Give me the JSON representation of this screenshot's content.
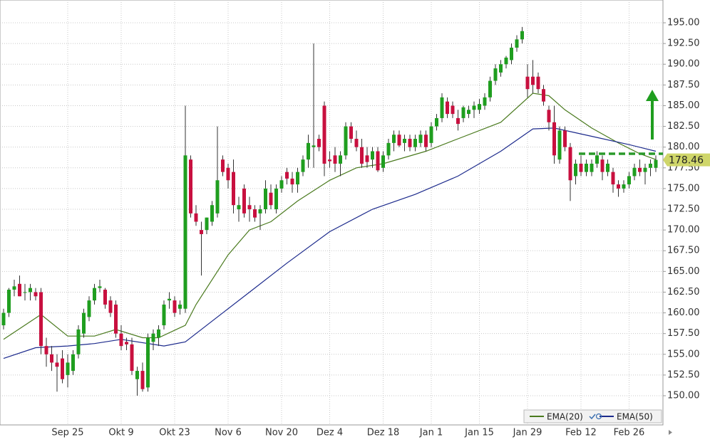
{
  "chart_data": {
    "type": "candlestick",
    "categories": [
      null,
      null,
      null,
      null,
      null,
      null,
      null,
      null,
      null,
      null,
      null,
      null,
      "Sep 25",
      null,
      null,
      null,
      null,
      null,
      null,
      null,
      null,
      null,
      "Okt 9",
      null,
      null,
      null,
      null,
      null,
      null,
      null,
      null,
      null,
      "Okt 23",
      null,
      null,
      null,
      null,
      null,
      null,
      null,
      null,
      null,
      "Nov 6",
      null,
      null,
      null,
      null,
      null,
      null,
      null,
      null,
      null,
      "Nov 20",
      null,
      null,
      null,
      null,
      null,
      null,
      null,
      null,
      "Dez 4",
      null,
      null,
      null,
      null,
      null,
      null,
      null,
      null,
      null,
      "Dez 18",
      null,
      null,
      null,
      null,
      null,
      null,
      null,
      null,
      "Jan 1",
      null,
      null,
      null,
      null,
      null,
      null,
      null,
      null,
      "Jan 15",
      null,
      null,
      null,
      null,
      null,
      null,
      null,
      null,
      "Jan 29",
      null,
      null,
      null,
      null,
      null,
      null,
      null,
      null,
      null,
      "Feb 12",
      null,
      null,
      null,
      null,
      null,
      null,
      null,
      null,
      "Feb 26",
      null,
      null,
      null,
      null,
      null
    ],
    "open": [
      158.5,
      160,
      162.8,
      163.5,
      162.5,
      162.5,
      162.5,
      162.5,
      156,
      155,
      154,
      154.5,
      152.5,
      153,
      155,
      157.5,
      159.5,
      161.5,
      163,
      162.8,
      161.5,
      161,
      157.5,
      156.5,
      156.2,
      152,
      153,
      151,
      156.5,
      157,
      158.5,
      161.5,
      161.5,
      160.5,
      160.5,
      178.5,
      172,
      170,
      170,
      171,
      172,
      178.5,
      177.5,
      177,
      172.5,
      175,
      173,
      172.5,
      172,
      172.5,
      174.5,
      172.5,
      175,
      177,
      176.2,
      175.5,
      177,
      178.5,
      180,
      181,
      185,
      178.5,
      179,
      178,
      179,
      182.5,
      181,
      180,
      179,
      178.5,
      179.5,
      177.5,
      179,
      180.5,
      181.5,
      180.5,
      181,
      180,
      180.5,
      181.5,
      180.5,
      182.5,
      183.5,
      185.5,
      185,
      183.5,
      183.5,
      184,
      184.5,
      184.5,
      185,
      186,
      188,
      189,
      190,
      190.5,
      192,
      193,
      188.5,
      188.5,
      188.5,
      187,
      184.5,
      183,
      178.5,
      182,
      180,
      176.5,
      178,
      177,
      177,
      178,
      178.5,
      177,
      177,
      175.5,
      175,
      175.5,
      176.5,
      177.5,
      177,
      177.5,
      177.5
    ],
    "high": [
      160.5,
      163,
      164,
      164.5,
      163.5,
      163.5,
      163,
      163,
      157,
      156,
      155,
      155.5,
      155,
      155.5,
      158.5,
      160.5,
      162,
      163.5,
      164,
      163,
      162,
      161.5,
      158.5,
      157,
      157,
      153.5,
      154,
      157.5,
      158,
      158.5,
      161.5,
      162.5,
      162,
      161.5,
      185,
      179,
      173,
      171,
      171.5,
      173.5,
      182.5,
      179,
      178,
      178.5,
      174,
      175.5,
      174,
      173,
      173,
      176,
      175.5,
      175.5,
      176.5,
      177.5,
      177,
      177.5,
      179,
      181.5,
      192.5,
      181.5,
      185.5,
      179.5,
      180,
      179.5,
      183,
      183,
      182,
      181,
      180,
      180,
      180,
      179.5,
      181,
      182,
      182,
      181.5,
      181.5,
      181.5,
      182,
      182,
      183,
      184,
      186.5,
      186,
      185.5,
      184.5,
      185,
      185,
      185.5,
      185.8,
      186.5,
      188.5,
      190,
      190.5,
      191,
      192.5,
      193.5,
      194.5,
      190,
      190.5,
      189,
      187.5,
      185,
      185,
      182.5,
      182.5,
      180.5,
      178.5,
      179,
      178.5,
      178.5,
      179.5,
      179,
      178.5,
      177.5,
      176,
      176,
      177,
      178,
      178.5,
      178,
      178.5,
      179
    ],
    "low": [
      158,
      159.5,
      162,
      162,
      161.5,
      161.5,
      161.5,
      155,
      153.5,
      153,
      150.5,
      151.5,
      151,
      152.5,
      154.5,
      157,
      159,
      161,
      162.5,
      160.5,
      159.5,
      157,
      155.5,
      155.5,
      152.5,
      150,
      150.5,
      150.5,
      155.5,
      156,
      158,
      160.5,
      159.5,
      159.8,
      160,
      171.5,
      170.5,
      164.5,
      169.5,
      170.5,
      171.5,
      176.5,
      175,
      172,
      171,
      171.5,
      171,
      171,
      170,
      172,
      172.5,
      172,
      174.5,
      175.5,
      174.5,
      174.5,
      176.5,
      177.5,
      177.5,
      179.5,
      176.5,
      177.5,
      177,
      176.5,
      178.5,
      180.5,
      179.5,
      177.5,
      177.5,
      177.5,
      177,
      177,
      178.5,
      179.5,
      180,
      179.5,
      179.5,
      179.5,
      180,
      179.5,
      180,
      182,
      183,
      183.5,
      183.5,
      182,
      183,
      183.5,
      183.5,
      184,
      184.5,
      185.5,
      187.5,
      188.5,
      189.5,
      190,
      191.5,
      192.5,
      186,
      186.5,
      186.5,
      185,
      182,
      178,
      178,
      179.5,
      173.5,
      175.5,
      176.5,
      176.5,
      176.5,
      177.5,
      176,
      176.5,
      174.5,
      174,
      174.5,
      175,
      176,
      176.5,
      175.5,
      176.5,
      177
    ],
    "close": [
      160,
      162.8,
      163.2,
      162,
      162.5,
      163,
      162,
      156,
      155,
      154,
      153.5,
      152,
      154,
      155,
      158,
      160,
      161.5,
      163,
      163.2,
      161,
      160,
      157.5,
      156,
      156.2,
      153,
      153,
      150.8,
      157,
      157.5,
      158,
      161,
      161.7,
      160,
      161,
      179,
      172,
      171,
      169.5,
      171.5,
      173,
      176,
      177,
      176,
      173,
      173,
      172,
      172.5,
      171.5,
      172.5,
      175,
      173,
      175,
      176,
      176.2,
      175.5,
      177,
      178.5,
      180.5,
      180.2,
      180,
      178,
      178.3,
      178,
      179,
      182.5,
      181,
      180,
      178,
      178.2,
      179.5,
      177.2,
      179,
      180.5,
      181.5,
      180.2,
      181,
      180,
      181,
      181.5,
      180,
      182.5,
      183.5,
      186,
      184,
      184,
      182.8,
      184.8,
      184.5,
      185,
      185.2,
      186,
      188,
      189.5,
      190,
      190.8,
      192,
      193,
      194,
      187,
      187.5,
      187,
      185.5,
      183,
      179,
      182,
      180,
      176,
      178,
      177,
      178,
      178,
      179,
      177,
      178,
      175.5,
      175,
      175.5,
      176.5,
      177.5,
      177,
      177.5,
      178,
      178.46
    ],
    "up_color": "#1f9e1f",
    "down_color": "#c8103f",
    "series": [
      {
        "name": "EMA(20)",
        "color": "#4a7a1e",
        "x": [
          0,
          7,
          12,
          17,
          21,
          26,
          29,
          34,
          36,
          42,
          46,
          50,
          55,
          61,
          66,
          71,
          79,
          85,
          93,
          99,
          102,
          105,
          110,
          115,
          119,
          122
        ],
        "values": [
          156.8,
          159.8,
          157.2,
          157.2,
          158,
          157,
          157,
          158.5,
          161,
          167,
          170,
          171,
          173.5,
          176,
          177.5,
          178,
          179.5,
          181,
          183,
          186.5,
          186.2,
          184.5,
          182.3,
          180.5,
          179.2,
          178.5
        ]
      },
      {
        "name": "EMA(50)",
        "color": "#1c2a8c",
        "x": [
          0,
          6,
          12,
          17,
          22,
          30,
          34,
          39,
          46,
          53,
          61,
          69,
          77,
          85,
          93,
          99,
          103,
          110,
          117,
          122
        ],
        "values": [
          154.5,
          155.8,
          156,
          156.3,
          156.8,
          156,
          156.5,
          159,
          162.5,
          166,
          169.8,
          172.5,
          174.3,
          176.5,
          179.5,
          182.2,
          182.3,
          181.3,
          180.3,
          179.5
        ]
      }
    ],
    "level_line": {
      "value": 179.2,
      "color": "#2a9a2a"
    },
    "price_tag_color": "#cfd66a",
    "ylim": [
      146.48,
      197.75
    ],
    "yticks": [
      {
        "value": 150,
        "label": "150.00"
      },
      {
        "value": 152.5,
        "label": "152.50"
      },
      {
        "value": 155,
        "label": "155.00"
      },
      {
        "value": 157.5,
        "label": "157.50"
      },
      {
        "value": 160,
        "label": "160.00"
      },
      {
        "value": 162.5,
        "label": "162.50"
      },
      {
        "value": 165,
        "label": "165.00"
      },
      {
        "value": 167.5,
        "label": "167.50"
      },
      {
        "value": 170,
        "label": "170.00"
      },
      {
        "value": 172.5,
        "label": "172.50"
      },
      {
        "value": 175,
        "label": "175.00"
      },
      {
        "value": 177.5,
        "label": "177.50"
      },
      {
        "value": 180,
        "label": "180.00"
      },
      {
        "value": 182.5,
        "label": "182.50"
      },
      {
        "value": 185,
        "label": "185.00"
      },
      {
        "value": 187.5,
        "label": "187.50"
      },
      {
        "value": 190,
        "label": "190.00"
      },
      {
        "value": 192.5,
        "label": "192.50"
      },
      {
        "value": 195,
        "label": "195.00"
      }
    ],
    "grid": true,
    "legend": "bottom-right"
  }
}
